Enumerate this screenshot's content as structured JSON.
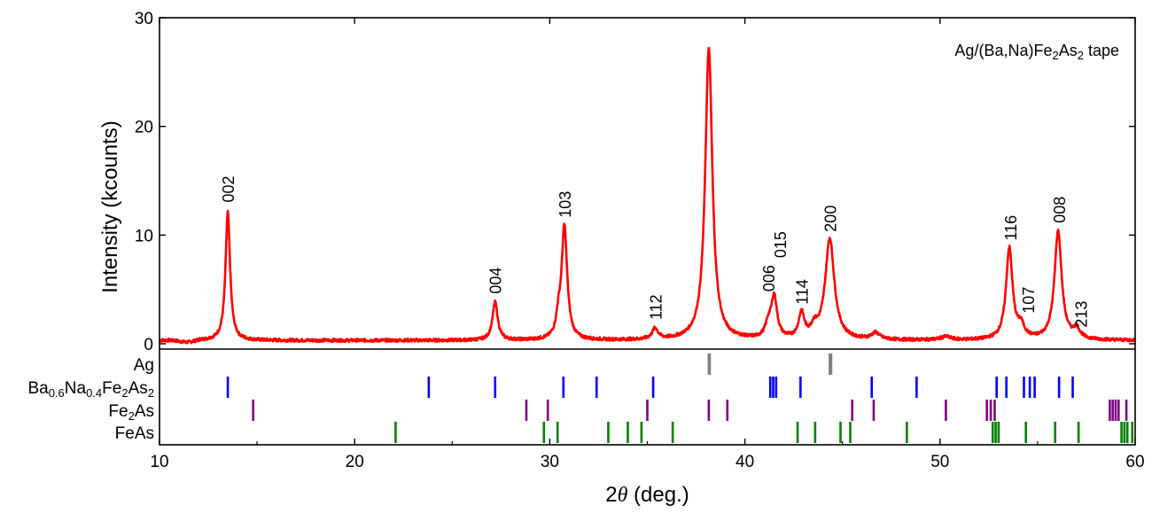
{
  "chart_data": {
    "type": "line",
    "title": "Ag/(Ba,Na)Fe2As2 tape",
    "title_parts": [
      {
        "text": "Ag/(Ba,Na)Fe",
        "sub": false
      },
      {
        "text": "2",
        "sub": true
      },
      {
        "text": "As",
        "sub": false
      },
      {
        "text": "2",
        "sub": true
      },
      {
        "text": " tape",
        "sub": false
      }
    ],
    "xlabel_parts": [
      {
        "text": "2",
        "italic": false
      },
      {
        "text": "θ",
        "italic": true
      },
      {
        "text": " (deg.)",
        "italic": false
      }
    ],
    "ylabel": "Intensity (kcounts)",
    "xlim": [
      10,
      60
    ],
    "ylim": [
      0,
      30
    ],
    "xticks": [
      10,
      20,
      30,
      40,
      50,
      60
    ],
    "yticks": [
      0,
      10,
      20,
      30
    ],
    "grid": false,
    "series": [
      {
        "color": "#ff0000",
        "baseline": 0.3,
        "peaks": [
          {
            "x": 13.5,
            "h": 11.8,
            "w": 0.14
          },
          {
            "x": 27.2,
            "h": 3.5,
            "w": 0.16
          },
          {
            "x": 30.45,
            "h": 1.6,
            "w": 0.14
          },
          {
            "x": 30.75,
            "h": 10.4,
            "w": 0.17
          },
          {
            "x": 35.4,
            "h": 1.0,
            "w": 0.18
          },
          {
            "x": 38.15,
            "h": 26.8,
            "w": 0.22
          },
          {
            "x": 41.2,
            "h": 1.2,
            "w": 0.18
          },
          {
            "x": 41.5,
            "h": 3.8,
            "w": 0.18
          },
          {
            "x": 42.9,
            "h": 2.3,
            "w": 0.17
          },
          {
            "x": 43.55,
            "h": 0.9,
            "w": 0.2
          },
          {
            "x": 44.35,
            "h": 9.3,
            "w": 0.28
          },
          {
            "x": 46.7,
            "h": 0.6,
            "w": 0.25
          },
          {
            "x": 50.3,
            "h": 0.3,
            "w": 0.3
          },
          {
            "x": 53.55,
            "h": 8.4,
            "w": 0.2
          },
          {
            "x": 54.15,
            "h": 1.1,
            "w": 0.2
          },
          {
            "x": 56.05,
            "h": 10.0,
            "w": 0.22
          },
          {
            "x": 57.0,
            "h": 0.9,
            "w": 0.2
          }
        ]
      }
    ],
    "peak_labels": [
      {
        "text": "002",
        "x": 13.5,
        "y": 13.0
      },
      {
        "text": "004",
        "x": 27.2,
        "y": 4.6
      },
      {
        "text": "103",
        "x": 30.75,
        "y": 11.6
      },
      {
        "text": "112",
        "x": 35.4,
        "y": 2.2
      },
      {
        "text": "006",
        "x": 41.2,
        "y": 4.8
      },
      {
        "text": "015",
        "x": 41.8,
        "y": 7.9
      },
      {
        "text": "114",
        "x": 42.9,
        "y": 3.6
      },
      {
        "text": "200",
        "x": 44.35,
        "y": 10.3
      },
      {
        "text": "116",
        "x": 53.6,
        "y": 9.5
      },
      {
        "text": "107",
        "x": 54.5,
        "y": 2.8
      },
      {
        "text": "008",
        "x": 56.1,
        "y": 11.1
      },
      {
        "text": "213",
        "x": 57.2,
        "y": 1.5
      }
    ],
    "phases": [
      {
        "name": "Ag",
        "parts": [
          {
            "text": "Ag",
            "sub": false
          }
        ],
        "color": "#808080",
        "positions": [
          38.15,
          38.2,
          44.35,
          44.42
        ]
      },
      {
        "name": "Ba0.6Na0.4Fe2As2",
        "parts": [
          {
            "text": "Ba",
            "sub": false
          },
          {
            "text": "0.6",
            "sub": true
          },
          {
            "text": "Na",
            "sub": false
          },
          {
            "text": "0.4",
            "sub": true
          },
          {
            "text": "Fe",
            "sub": false
          },
          {
            "text": "2",
            "sub": true
          },
          {
            "text": "As",
            "sub": false
          },
          {
            "text": "2",
            "sub": true
          }
        ],
        "color": "#0000ff",
        "positions": [
          13.5,
          23.8,
          27.2,
          30.7,
          32.4,
          35.3,
          41.3,
          41.45,
          41.6,
          42.85,
          46.5,
          48.8,
          52.9,
          53.4,
          54.3,
          54.6,
          54.85,
          56.1,
          56.8
        ]
      },
      {
        "name": "Fe2As",
        "parts": [
          {
            "text": "Fe",
            "sub": false
          },
          {
            "text": "2",
            "sub": true
          },
          {
            "text": "As",
            "sub": false
          }
        ],
        "color": "#800080",
        "positions": [
          14.8,
          28.8,
          29.9,
          35.0,
          38.15,
          39.1,
          45.5,
          46.6,
          50.3,
          52.4,
          52.6,
          52.8,
          58.7,
          58.85,
          59.0,
          59.15,
          59.55
        ]
      },
      {
        "name": "FeAs",
        "parts": [
          {
            "text": "FeAs",
            "sub": false
          }
        ],
        "color": "#008000",
        "positions": [
          22.1,
          29.7,
          30.4,
          33.0,
          34.0,
          34.7,
          36.3,
          42.7,
          43.6,
          44.9,
          45.4,
          48.3,
          52.7,
          52.85,
          53.0,
          54.4,
          55.9,
          57.1,
          59.3,
          59.45,
          59.6,
          59.85
        ]
      }
    ]
  }
}
